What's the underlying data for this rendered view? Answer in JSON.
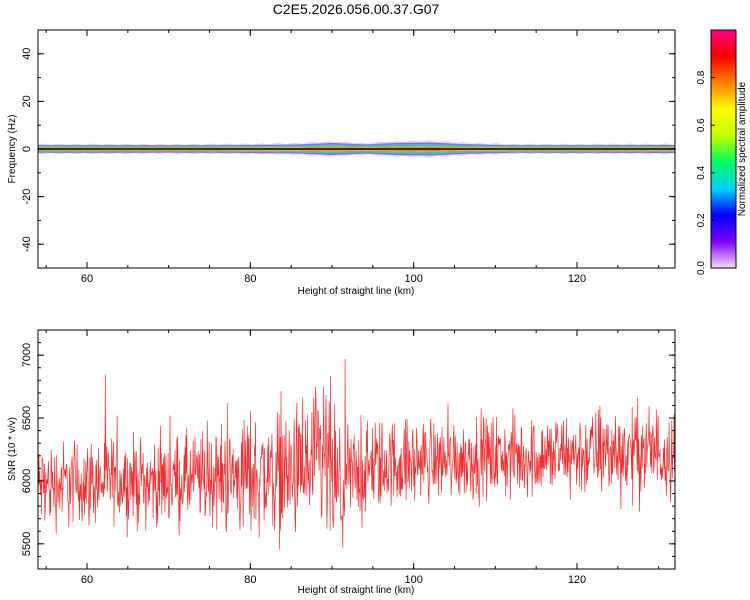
{
  "title": "C2E5.2026.056.00.37.G07",
  "chart_data": [
    {
      "type": "heatmap",
      "xlabel": "Height of straight line (km)",
      "ylabel": "Frequency (Hz)",
      "xlim": [
        54,
        132
      ],
      "ylim": [
        -50,
        50
      ],
      "x_ticks": [
        60,
        80,
        100,
        120
      ],
      "y_ticks": [
        -40,
        -20,
        0,
        20,
        40
      ],
      "band_center_hz": 0,
      "band_profile": [
        {
          "x": 54,
          "halfwidth": 2.0
        },
        {
          "x": 60,
          "halfwidth": 2.0
        },
        {
          "x": 70,
          "halfwidth": 1.9
        },
        {
          "x": 80,
          "halfwidth": 2.1
        },
        {
          "x": 86,
          "halfwidth": 2.4
        },
        {
          "x": 90,
          "halfwidth": 3.2
        },
        {
          "x": 94,
          "halfwidth": 2.4
        },
        {
          "x": 98,
          "halfwidth": 3.2
        },
        {
          "x": 102,
          "halfwidth": 3.4
        },
        {
          "x": 106,
          "halfwidth": 2.6
        },
        {
          "x": 112,
          "halfwidth": 2.0
        },
        {
          "x": 120,
          "halfwidth": 2.0
        },
        {
          "x": 132,
          "halfwidth": 2.1
        }
      ],
      "colorbar": {
        "label": "Normalized spectral amplitude",
        "range": [
          0,
          1
        ],
        "ticks": [
          0.0,
          0.2,
          0.4,
          0.6,
          0.8
        ],
        "tick_labels": [
          "0.0",
          "0.2",
          "0.4",
          "0.6",
          "0.8"
        ],
        "colors": [
          "#f5ddf5",
          "#8000ff",
          "#0000ff",
          "#00d0ff",
          "#00ff60",
          "#c0ff00",
          "#ffff00",
          "#ff8000",
          "#ff0000",
          "#ff0080"
        ]
      },
      "grid": false
    },
    {
      "type": "line",
      "xlabel": "Height of straight line (km)",
      "ylabel": "SNR (10 * v/v)",
      "xlim": [
        54,
        132
      ],
      "ylim": [
        5300,
        7200
      ],
      "x_ticks": [
        60,
        80,
        100,
        120
      ],
      "y_ticks": [
        5500,
        6000,
        6500,
        7000
      ],
      "series_color": "#f03030",
      "series": [
        {
          "x": [
            54,
            56,
            58,
            60,
            62,
            64,
            66,
            68,
            70,
            72,
            74,
            76,
            78,
            80,
            82,
            84,
            86,
            88,
            89,
            90,
            91,
            92,
            94,
            96,
            98,
            100,
            102,
            104,
            106,
            108,
            110,
            112,
            114,
            116,
            118,
            120,
            122,
            124,
            126,
            128,
            130,
            132
          ],
          "mean": [
            5950,
            5970,
            5980,
            5990,
            6000,
            6010,
            6000,
            5990,
            6000,
            6010,
            6020,
            6030,
            6020,
            6060,
            6050,
            6060,
            6060,
            6100,
            6150,
            6050,
            5850,
            6030,
            6080,
            6120,
            6150,
            6150,
            6170,
            6180,
            6180,
            6190,
            6190,
            6180,
            6190,
            6200,
            6200,
            6210,
            6220,
            6230,
            6230,
            6240,
            6240,
            6250
          ],
          "noise": [
            170,
            170,
            170,
            170,
            170,
            170,
            170,
            170,
            170,
            175,
            185,
            200,
            220,
            250,
            240,
            250,
            260,
            300,
            350,
            330,
            260,
            200,
            190,
            180,
            170,
            165,
            160,
            160,
            160,
            160,
            160,
            160,
            160,
            160,
            165,
            170,
            170,
            180,
            180,
            180,
            180,
            180
          ]
        }
      ],
      "grid": false
    }
  ]
}
